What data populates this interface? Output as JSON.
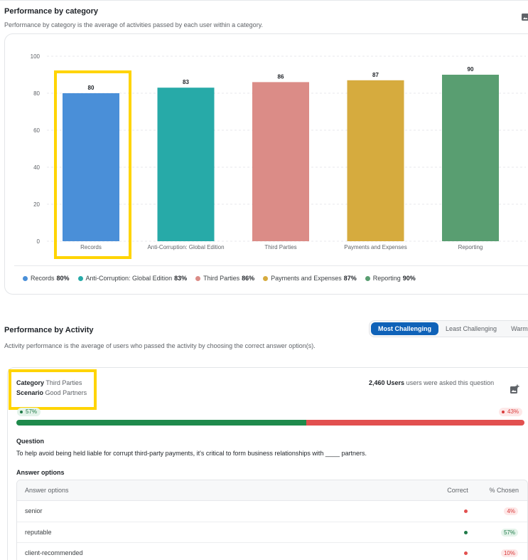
{
  "category_section": {
    "title": "Performance by category",
    "description": "Performance by category is the average of activities passed by each user within a category."
  },
  "chart_data": {
    "type": "bar",
    "categories": [
      "Records",
      "Anti-Corruption: Global Edition",
      "Third Parties",
      "Payments and Expenses",
      "Reporting"
    ],
    "values": [
      80,
      83,
      86,
      87,
      90
    ],
    "colors": [
      "#4a8fd8",
      "#27aaa8",
      "#db8c87",
      "#d6ab3e",
      "#599e71"
    ],
    "ylim": [
      0,
      100
    ],
    "yticks": [
      0,
      20,
      40,
      60,
      80,
      100
    ],
    "grid": true,
    "legend": "bottom"
  },
  "legend_items": [
    {
      "label": "Records",
      "value": "80%",
      "color": "#4a8fd8"
    },
    {
      "label": "Anti-Corruption: Global Edition",
      "value": "83%",
      "color": "#27aaa8"
    },
    {
      "label": "Third Parties",
      "value": "86%",
      "color": "#db8c87"
    },
    {
      "label": "Payments and Expenses",
      "value": "87%",
      "color": "#d6ab3e"
    },
    {
      "label": "Reporting",
      "value": "90%",
      "color": "#599e71"
    }
  ],
  "activity_section": {
    "title": "Performance by Activity",
    "description": "Activity performance is the average of users who passed the activity by choosing the correct answer option(s).",
    "tabs": [
      "Most Challenging",
      "Least Challenging",
      "Warm up"
    ],
    "active_tab": "Most Challenging"
  },
  "question_card": {
    "category_label": "Category",
    "category_value": "Third Parties",
    "scenario_label": "Scenario",
    "scenario_value": "Good Partners",
    "users_count": "2,460 Users",
    "users_text": "users were asked this question",
    "correct_pct": "57%",
    "incorrect_pct": "43%",
    "correct_fraction": 0.57,
    "question_label": "Question",
    "question_text": "To help avoid being held liable for corrupt third-party payments, it's critical to form business relationships with ____ partners.",
    "answers_label": "Answer options",
    "table_headers": {
      "option": "Answer options",
      "correct": "Correct",
      "chosen": "% Chosen"
    },
    "options": [
      {
        "text": "senior",
        "correct": false,
        "chosen": "4%"
      },
      {
        "text": "reputable",
        "correct": true,
        "chosen": "57%"
      },
      {
        "text": "client-recommended",
        "correct": false,
        "chosen": "10%"
      }
    ]
  },
  "colors": {
    "accent": "#0f62b8",
    "highlight": "#ffd400",
    "correct": "#1f8a4c",
    "incorrect": "#e2504f"
  }
}
